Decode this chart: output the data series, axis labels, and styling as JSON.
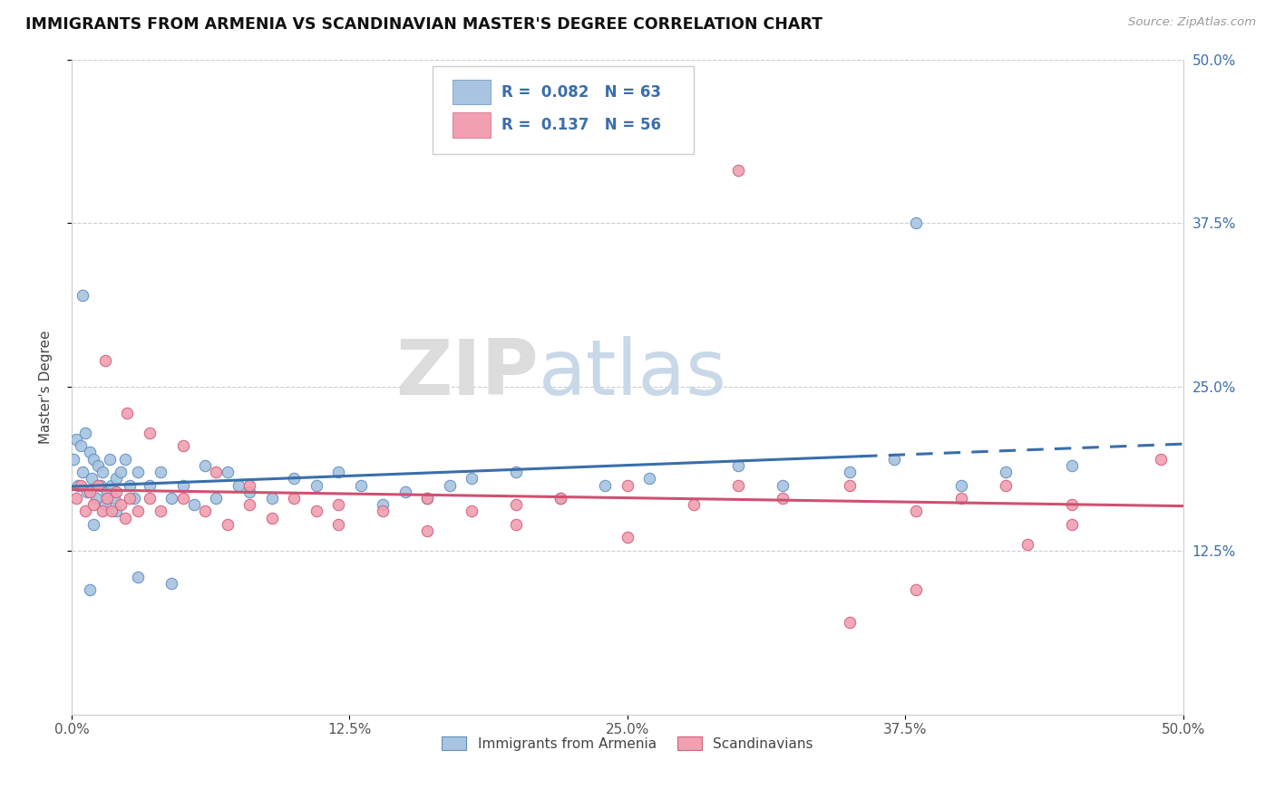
{
  "title": "IMMIGRANTS FROM ARMENIA VS SCANDINAVIAN MASTER'S DEGREE CORRELATION CHART",
  "source_text": "Source: ZipAtlas.com",
  "ylabel": "Master's Degree",
  "xlim": [
    0.0,
    0.5
  ],
  "ylim": [
    0.0,
    0.5
  ],
  "xtick_labels": [
    "0.0%",
    "",
    "12.5%",
    "",
    "25.0%",
    "",
    "37.5%",
    "",
    "50.0%"
  ],
  "xtick_positions": [
    0.0,
    0.0625,
    0.125,
    0.1875,
    0.25,
    0.3125,
    0.375,
    0.4375,
    0.5
  ],
  "ytick_positions": [
    0.125,
    0.25,
    0.375,
    0.5
  ],
  "right_ytick_labels": [
    "12.5%",
    "25.0%",
    "37.5%",
    "50.0%"
  ],
  "right_ytick_positions": [
    0.125,
    0.25,
    0.375,
    0.5
  ],
  "blue_R": 0.082,
  "blue_N": 63,
  "pink_R": 0.137,
  "pink_N": 56,
  "blue_color": "#a8c4e0",
  "pink_color": "#f0a0b0",
  "blue_edge_color": "#6090c0",
  "pink_edge_color": "#d06080",
  "blue_line_color": "#3a6eaa",
  "pink_line_color": "#d05070",
  "watermark_zip": "ZIP",
  "watermark_atlas": "atlas",
  "legend_label_blue": "Immigrants from Armenia",
  "legend_label_pink": "Scandinavians"
}
